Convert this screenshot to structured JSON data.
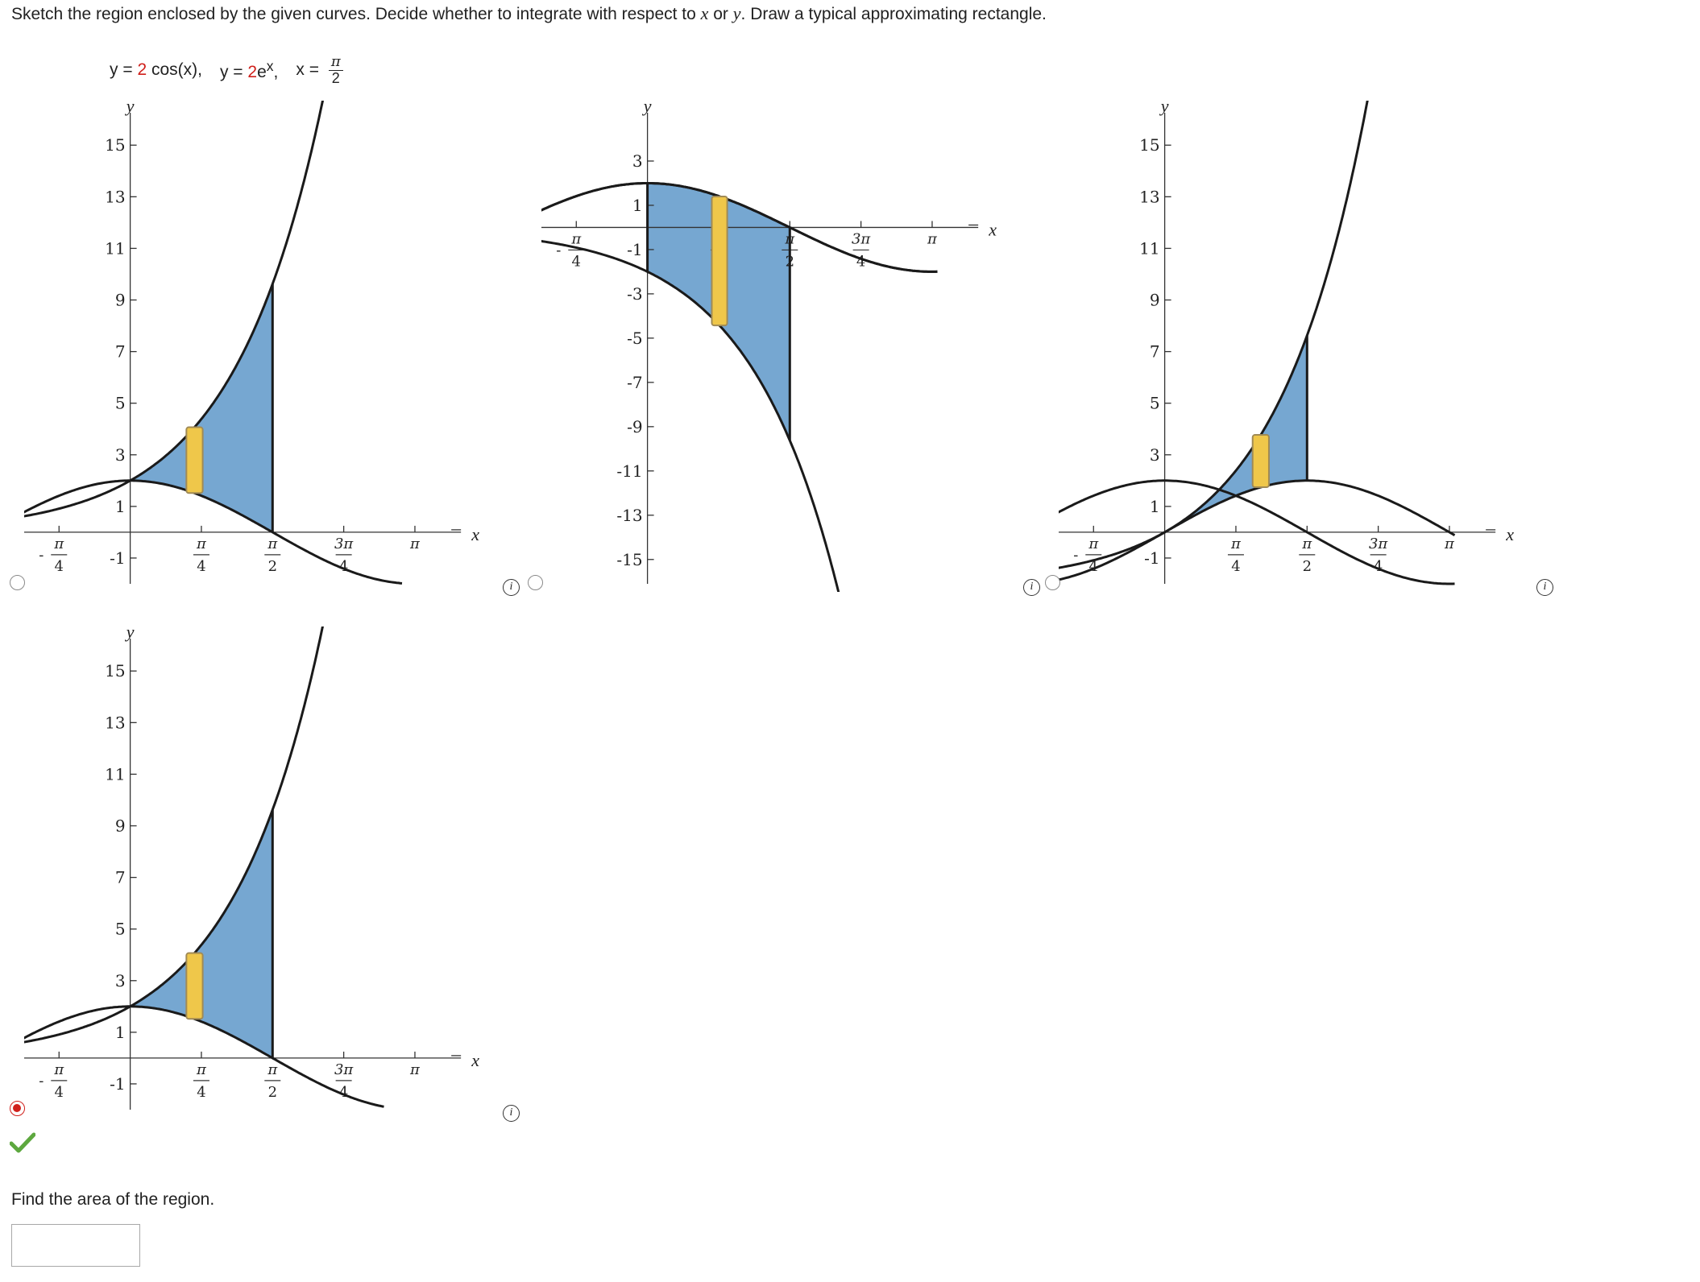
{
  "question": {
    "instruction_parts": [
      "Sketch the region enclosed by the given curves. Decide whether to integrate with respect to ",
      "x",
      " or ",
      "y",
      ". Draw a typical approximating rectangle."
    ],
    "equation": {
      "eq1_lhs": "y = ",
      "eq1_coef": "2",
      "eq1_rhs": " cos(x),",
      "eq2_lhs": "y = ",
      "eq2_coef": "2",
      "eq2_base": "e",
      "eq2_exp": "x",
      "eq2_end": ",",
      "eq3_lhs": "x = ",
      "eq3_num": "π",
      "eq3_den": "2"
    },
    "follow_up": "Find the area of the region."
  },
  "colors": {
    "region_fill": "#76a7d1",
    "region_outline": "#5a7fb2",
    "rectangle_fill": "#efc74a",
    "rectangle_outline": "#a08a55",
    "curve": "#1a1a1a",
    "radio_selected": "#d0201b",
    "correct_check": "#5da83f"
  },
  "answer": {
    "value": "",
    "correct_indicator": "checkmark-icon"
  },
  "options": [
    {
      "id": "option-a",
      "selected": false,
      "chart_data": {
        "type": "line",
        "curves": [
          "y = 2cos(x)",
          "y = 2e^x",
          "x = π/2"
        ],
        "xlabel": "x",
        "ylabel": "y",
        "xlim": [
          -1.099,
          3.702
        ],
        "ylim": [
          -2,
          16.1
        ],
        "x_ticks": [
          [
            -0.785398,
            "-",
            "π",
            "4"
          ],
          [
            0.785398,
            "",
            "π",
            "4"
          ],
          [
            1.570796,
            "",
            "π",
            "2"
          ],
          [
            2.356194,
            "",
            "3π",
            "4"
          ],
          [
            3.141593,
            "",
            "π",
            ""
          ]
        ],
        "y_ticks": [
          [
            15,
            "15"
          ],
          [
            13,
            "13"
          ],
          [
            11,
            "11"
          ],
          [
            9,
            "9"
          ],
          [
            7,
            "7"
          ],
          [
            5,
            "5"
          ],
          [
            3,
            "3"
          ],
          [
            1,
            "1"
          ],
          [
            -1,
            "-1"
          ]
        ],
        "region": {
          "lower": "cos",
          "upper": "exp",
          "x_from": 0,
          "x_to": 1.5708
        },
        "boundary_x": 1.5708,
        "rectangle": {
          "x_from": 0.62,
          "x_to": 0.8
        },
        "x_range": [
          -1.4,
          3.0
        ]
      }
    },
    {
      "id": "option-b",
      "selected": false,
      "chart_data": {
        "type": "line",
        "curves": [
          "y = 2cos(x)",
          "y = 2e^x",
          "x = π/2"
        ],
        "xlabel": "x",
        "ylabel": "y",
        "xlim": [
          -1.099,
          3.702
        ],
        "ylim": [
          -16.1,
          5
        ],
        "x_ticks": [
          [
            -0.785398,
            "-",
            "π",
            "4"
          ],
          [
            0.785398,
            "",
            "π",
            "4"
          ],
          [
            1.570796,
            "",
            "π",
            "2"
          ],
          [
            2.356194,
            "",
            "3π",
            "4"
          ],
          [
            3.141593,
            "",
            "π",
            ""
          ]
        ],
        "y_ticks": [
          [
            3,
            "3"
          ],
          [
            1,
            "1"
          ],
          [
            -1,
            "-1"
          ],
          [
            -3,
            "-3"
          ],
          [
            -5,
            "-5"
          ],
          [
            -7,
            "-7"
          ],
          [
            -9,
            "-9"
          ],
          [
            -11,
            "-11"
          ],
          [
            -13,
            "-13"
          ],
          [
            -15,
            "-15"
          ]
        ],
        "region": {
          "lower": "negexp",
          "upper": "cos",
          "x_from": 0,
          "x_to": 1.5708
        },
        "boundary_x": 1.5708,
        "rectangle": {
          "x_from": 0.71,
          "x_to": 0.88
        },
        "x_range": [
          -1.4,
          3.2
        ]
      }
    },
    {
      "id": "option-c",
      "selected": false,
      "chart_data": {
        "type": "line",
        "curves": [
          "y = 2cos(x)",
          "y = 2e^x",
          "x = π/2"
        ],
        "xlabel": "x",
        "ylabel": "y",
        "xlim": [
          -1.099,
          3.702
        ],
        "ylim": [
          -2,
          16.1
        ],
        "x_ticks": [
          [
            -0.785398,
            "-",
            "π",
            "4"
          ],
          [
            0.785398,
            "",
            "π",
            "4"
          ],
          [
            1.570796,
            "",
            "π",
            "2"
          ],
          [
            2.356194,
            "",
            "3π",
            "4"
          ],
          [
            3.141593,
            "",
            "π",
            ""
          ]
        ],
        "y_ticks": [
          [
            15,
            "15"
          ],
          [
            13,
            "13"
          ],
          [
            11,
            "11"
          ],
          [
            9,
            "9"
          ],
          [
            7,
            "7"
          ],
          [
            5,
            "5"
          ],
          [
            3,
            "3"
          ],
          [
            1,
            "1"
          ],
          [
            -1,
            "-1"
          ]
        ],
        "region": {
          "lower": "sin",
          "upper": "expm1",
          "x_from": 0,
          "x_to": 1.5708
        },
        "boundary_x": 1.5708,
        "rectangle": {
          "x_from": 0.97,
          "x_to": 1.15
        },
        "x_range": [
          -1.4,
          3.2
        ]
      }
    },
    {
      "id": "option-d",
      "selected": true,
      "chart_data": {
        "type": "line",
        "curves": [
          "y = 2cos(x)",
          "y = 2e^x",
          "x = π/2"
        ],
        "xlabel": "x",
        "ylabel": "y",
        "xlim": [
          -1.099,
          3.702
        ],
        "ylim": [
          -2,
          16.1
        ],
        "x_ticks": [
          [
            -0.785398,
            "-",
            "π",
            "4"
          ],
          [
            0.785398,
            "",
            "π",
            "4"
          ],
          [
            1.570796,
            "",
            "π",
            "2"
          ],
          [
            2.356194,
            "",
            "3π",
            "4"
          ],
          [
            3.141593,
            "",
            "π",
            ""
          ]
        ],
        "y_ticks": [
          [
            15,
            "15"
          ],
          [
            13,
            "13"
          ],
          [
            11,
            "11"
          ],
          [
            9,
            "9"
          ],
          [
            7,
            "7"
          ],
          [
            5,
            "5"
          ],
          [
            3,
            "3"
          ],
          [
            1,
            "1"
          ],
          [
            -1,
            "-1"
          ]
        ],
        "region": {
          "lower": "cos",
          "upper": "exp",
          "x_from": 0,
          "x_to": 1.5708
        },
        "boundary_x": 1.5708,
        "rectangle": {
          "x_from": 0.62,
          "x_to": 0.8
        },
        "x_range": [
          -1.4,
          2.8
        ]
      }
    }
  ]
}
